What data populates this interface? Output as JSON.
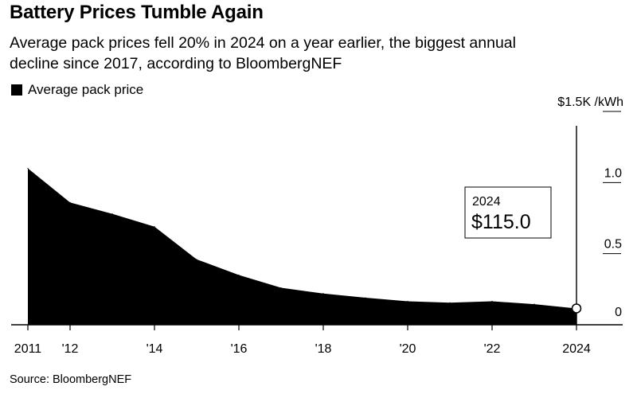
{
  "header": {
    "title": "Battery Prices Tumble Again",
    "subtitle": "Average pack prices fell 20% in 2024 on a year earlier, the biggest annual decline since 2017, according to BloombergNEF"
  },
  "legend": {
    "label": "Average pack price",
    "color": "#000000"
  },
  "footer": {
    "source": "Source: BloombergNEF"
  },
  "chart_data": {
    "type": "area",
    "x": [
      2011,
      2012,
      2013,
      2014,
      2015,
      2016,
      2017,
      2018,
      2019,
      2020,
      2021,
      2022,
      2023,
      2024
    ],
    "series": [
      {
        "name": "Average pack price",
        "values": [
          1.1,
          0.86,
          0.78,
          0.69,
          0.46,
          0.35,
          0.26,
          0.22,
          0.19,
          0.165,
          0.155,
          0.165,
          0.145,
          0.115
        ],
        "color": "#000000"
      }
    ],
    "x_ticks": [
      {
        "value": 2011,
        "label": "2011"
      },
      {
        "value": 2012,
        "label": "'12"
      },
      {
        "value": 2014,
        "label": "'14"
      },
      {
        "value": 2016,
        "label": "'16"
      },
      {
        "value": 2018,
        "label": "'18"
      },
      {
        "value": 2020,
        "label": "'20"
      },
      {
        "value": 2022,
        "label": "'22"
      },
      {
        "value": 2024,
        "label": "2024"
      }
    ],
    "y_ticks": [
      {
        "value": 1.5,
        "label": "$1.5K /kWh"
      },
      {
        "value": 1.0,
        "label": "1.0"
      },
      {
        "value": 0.5,
        "label": "0.5"
      },
      {
        "value": 0,
        "label": "0"
      }
    ],
    "ylim": [
      0,
      1.5
    ],
    "xlim": [
      2011,
      2024
    ],
    "grid": false,
    "annotation": {
      "x": 2024,
      "y": 0.115,
      "year": "2024",
      "value": "$115.0"
    }
  }
}
